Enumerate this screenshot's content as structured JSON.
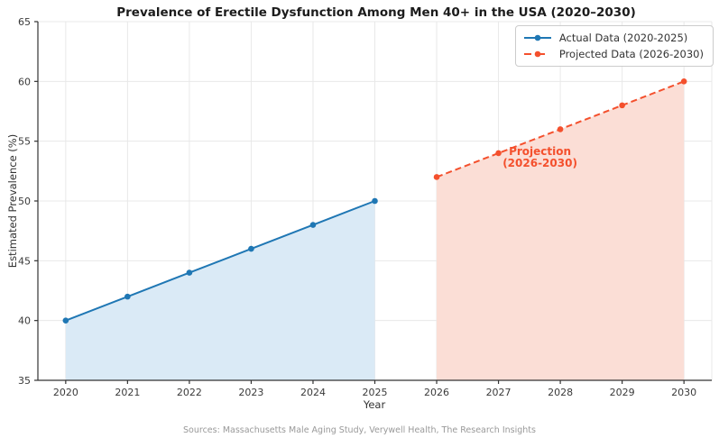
{
  "figure": {
    "title": "Prevalence of Erectile Dysfunction Among Men 40+ in the USA (2020–2030)",
    "source_note": "Sources: Massachusetts Male Aging Study, Verywell Health, The Research Insights"
  },
  "chart_data": {
    "type": "line",
    "title": "Prevalence of Erectile Dysfunction Among Men 40+ in the USA (2020–2030)",
    "xlabel": "Year",
    "ylabel": "Estimated Prevalence (%)",
    "xlim": [
      2019.55,
      2030.45
    ],
    "ylim": [
      35,
      65
    ],
    "xticks": [
      2020,
      2021,
      2022,
      2023,
      2024,
      2025,
      2026,
      2027,
      2028,
      2029,
      2030
    ],
    "yticks": [
      35,
      40,
      45,
      50,
      55,
      60,
      65
    ],
    "grid": true,
    "legend": {
      "position": "upper right",
      "entries": [
        "Actual Data (2020-2025)",
        "Projected Data (2026-2030)"
      ]
    },
    "series": [
      {
        "name": "Actual Data (2020-2025)",
        "x": [
          2020,
          2021,
          2022,
          2023,
          2024,
          2025
        ],
        "values": [
          40,
          42,
          44,
          46,
          48,
          50
        ],
        "color": "#1f77b4",
        "fill_color": "#daeaf6",
        "line_style": "solid",
        "marker": "circle"
      },
      {
        "name": "Projected Data (2026-2030)",
        "x": [
          2026,
          2027,
          2028,
          2029,
          2030
        ],
        "values": [
          52,
          54,
          56,
          58,
          60
        ],
        "color": "#f4502d",
        "fill_color": "#fbded6",
        "line_style": "dashed",
        "marker": "circle"
      }
    ],
    "annotation": {
      "text_lines": [
        "Projection",
        "(2026-2030)"
      ],
      "x": 2027,
      "y": 54,
      "color": "#f4502d"
    }
  }
}
